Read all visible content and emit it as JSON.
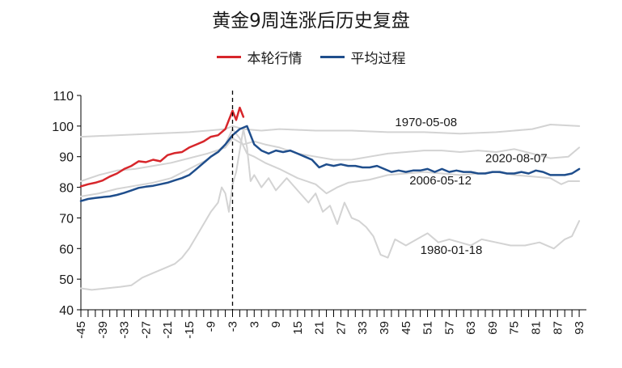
{
  "chart_data": {
    "type": "line",
    "title": "黄金9周连涨后历史复盘",
    "xlabel": "",
    "ylabel": "",
    "xlim": [
      -45,
      95
    ],
    "ylim": [
      40,
      110
    ],
    "x_ticks": [
      -45,
      -39,
      -33,
      -27,
      -21,
      -15,
      -9,
      -3,
      3,
      9,
      15,
      21,
      27,
      33,
      39,
      45,
      51,
      57,
      63,
      69,
      75,
      81,
      87,
      93
    ],
    "x_tick_labels": [
      "-45",
      "-39",
      "-33",
      "-27",
      "-21",
      "-15",
      "-9",
      "-3",
      "3",
      "9",
      "15",
      "21",
      "27",
      "33",
      "39",
      "45",
      "51",
      "57",
      "63",
      "69",
      "75",
      "81",
      "87",
      "93"
    ],
    "y_ticks": [
      40,
      50,
      60,
      70,
      80,
      90,
      100,
      110
    ],
    "y_tick_labels": [
      "40",
      "50",
      "60",
      "70",
      "80",
      "90",
      "100",
      "110"
    ],
    "reference_line": {
      "x": -3,
      "style": "dashed"
    },
    "legend": [
      {
        "name": "本轮行情",
        "color": "#d7262b"
      },
      {
        "name": "平均过程",
        "color": "#1f4e8c"
      }
    ],
    "colors": {
      "current": "#d7262b",
      "average": "#1f4e8c",
      "history": "#d3d3d3",
      "axis": "#000000"
    },
    "annotations": [
      {
        "text": "1970-05-08",
        "x": 42,
        "y": 101.5
      },
      {
        "text": "2020-08-07",
        "x": 67,
        "y": 89.8
      },
      {
        "text": "2006-05-12",
        "x": 46,
        "y": 82.5
      },
      {
        "text": "1980-01-18",
        "x": 49,
        "y": 59.8
      }
    ],
    "series": [
      {
        "name": "本轮行情",
        "role": "current",
        "points": [
          [
            -45,
            80.3
          ],
          [
            -43,
            81
          ],
          [
            -41,
            81.5
          ],
          [
            -39,
            82.2
          ],
          [
            -37,
            83.5
          ],
          [
            -35,
            84.5
          ],
          [
            -33,
            86
          ],
          [
            -31,
            87
          ],
          [
            -29,
            88.5
          ],
          [
            -27,
            88.2
          ],
          [
            -25,
            89
          ],
          [
            -23,
            88.5
          ],
          [
            -21,
            90.5
          ],
          [
            -19,
            91.2
          ],
          [
            -17,
            91.5
          ],
          [
            -15,
            93
          ],
          [
            -13,
            94
          ],
          [
            -11,
            95
          ],
          [
            -9,
            96.5
          ],
          [
            -7,
            97
          ],
          [
            -5,
            99
          ],
          [
            -4,
            102
          ],
          [
            -3,
            105
          ],
          [
            -2,
            102
          ],
          [
            -1,
            106
          ],
          [
            0,
            103
          ]
        ]
      },
      {
        "name": "平均过程",
        "role": "average",
        "points": [
          [
            -45,
            75.5
          ],
          [
            -43,
            76.2
          ],
          [
            -41,
            76.5
          ],
          [
            -39,
            76.8
          ],
          [
            -37,
            77
          ],
          [
            -35,
            77.5
          ],
          [
            -33,
            78.2
          ],
          [
            -31,
            79
          ],
          [
            -29,
            79.8
          ],
          [
            -27,
            80.2
          ],
          [
            -25,
            80.5
          ],
          [
            -23,
            81
          ],
          [
            -21,
            81.5
          ],
          [
            -19,
            82.3
          ],
          [
            -17,
            83
          ],
          [
            -15,
            84
          ],
          [
            -13,
            86
          ],
          [
            -11,
            88
          ],
          [
            -9,
            90
          ],
          [
            -7,
            91.5
          ],
          [
            -5,
            94
          ],
          [
            -3,
            97
          ],
          [
            -1,
            99
          ],
          [
            1,
            100
          ],
          [
            3,
            94
          ],
          [
            5,
            92
          ],
          [
            7,
            91
          ],
          [
            9,
            92
          ],
          [
            11,
            91.5
          ],
          [
            13,
            92
          ],
          [
            15,
            91
          ],
          [
            17,
            90
          ],
          [
            19,
            89
          ],
          [
            21,
            86.5
          ],
          [
            23,
            87.5
          ],
          [
            25,
            87
          ],
          [
            27,
            87.5
          ],
          [
            29,
            87
          ],
          [
            31,
            87
          ],
          [
            33,
            86.5
          ],
          [
            35,
            86.5
          ],
          [
            37,
            87
          ],
          [
            39,
            86
          ],
          [
            41,
            85
          ],
          [
            43,
            85.5
          ],
          [
            45,
            85
          ],
          [
            47,
            85.5
          ],
          [
            49,
            85.5
          ],
          [
            51,
            86
          ],
          [
            53,
            85
          ],
          [
            55,
            86
          ],
          [
            57,
            85
          ],
          [
            59,
            85.5
          ],
          [
            61,
            85
          ],
          [
            63,
            85
          ],
          [
            65,
            84.5
          ],
          [
            67,
            84.5
          ],
          [
            69,
            85
          ],
          [
            71,
            85
          ],
          [
            73,
            84.5
          ],
          [
            75,
            84.5
          ],
          [
            77,
            85
          ],
          [
            79,
            84.5
          ],
          [
            81,
            85.5
          ],
          [
            83,
            85
          ],
          [
            85,
            84
          ],
          [
            87,
            84
          ],
          [
            89,
            84
          ],
          [
            91,
            84.5
          ],
          [
            93,
            86
          ]
        ]
      },
      {
        "name": "1970-05-08",
        "role": "history",
        "points": [
          [
            -45,
            96.5
          ],
          [
            -35,
            97
          ],
          [
            -25,
            97.5
          ],
          [
            -15,
            98
          ],
          [
            -5,
            99
          ],
          [
            -3,
            100
          ],
          [
            0,
            99
          ],
          [
            5,
            98.5
          ],
          [
            10,
            99
          ],
          [
            20,
            98.5
          ],
          [
            30,
            98.5
          ],
          [
            40,
            98
          ],
          [
            50,
            98
          ],
          [
            60,
            97.5
          ],
          [
            70,
            98
          ],
          [
            80,
            99
          ],
          [
            85,
            100.5
          ],
          [
            93,
            100
          ]
        ]
      },
      {
        "name": "2020-08-07",
        "role": "history",
        "points": [
          [
            -45,
            82
          ],
          [
            -40,
            84
          ],
          [
            -35,
            85.5
          ],
          [
            -30,
            86
          ],
          [
            -25,
            87
          ],
          [
            -20,
            88
          ],
          [
            -15,
            89.5
          ],
          [
            -10,
            91
          ],
          [
            -5,
            93
          ],
          [
            -3,
            96
          ],
          [
            0,
            94
          ],
          [
            3,
            95
          ],
          [
            6,
            94
          ],
          [
            10,
            93
          ],
          [
            15,
            91
          ],
          [
            20,
            90
          ],
          [
            25,
            89
          ],
          [
            30,
            89
          ],
          [
            35,
            90
          ],
          [
            40,
            91
          ],
          [
            45,
            91.5
          ],
          [
            50,
            92
          ],
          [
            55,
            92
          ],
          [
            60,
            91.5
          ],
          [
            65,
            92
          ],
          [
            70,
            91.5
          ],
          [
            75,
            92.5
          ],
          [
            80,
            91
          ],
          [
            85,
            89.5
          ],
          [
            90,
            90
          ],
          [
            93,
            93
          ]
        ]
      },
      {
        "name": "2006-05-12",
        "role": "history",
        "points": [
          [
            -45,
            77
          ],
          [
            -40,
            78
          ],
          [
            -35,
            79.5
          ],
          [
            -30,
            80.5
          ],
          [
            -25,
            81.5
          ],
          [
            -20,
            83
          ],
          [
            -15,
            86
          ],
          [
            -10,
            89
          ],
          [
            -5,
            94
          ],
          [
            -3,
            99
          ],
          [
            -1,
            96
          ],
          [
            1,
            91
          ],
          [
            3,
            90
          ],
          [
            6,
            88
          ],
          [
            10,
            86
          ],
          [
            15,
            83
          ],
          [
            20,
            81
          ],
          [
            23,
            78
          ],
          [
            26,
            80
          ],
          [
            29,
            81.5
          ],
          [
            32,
            82
          ],
          [
            35,
            82.5
          ],
          [
            40,
            84
          ],
          [
            45,
            84.5
          ],
          [
            50,
            85
          ],
          [
            55,
            84.5
          ],
          [
            60,
            84
          ],
          [
            65,
            84.5
          ],
          [
            70,
            85
          ],
          [
            75,
            84
          ],
          [
            80,
            83.5
          ],
          [
            85,
            83
          ],
          [
            88,
            81
          ],
          [
            90,
            82
          ],
          [
            93,
            82
          ]
        ]
      },
      {
        "name": "1980-01-18",
        "role": "history",
        "points": [
          [
            -45,
            47
          ],
          [
            -42,
            46.5
          ],
          [
            -38,
            47
          ],
          [
            -34,
            47.5
          ],
          [
            -31,
            48
          ],
          [
            -28,
            50.5
          ],
          [
            -25,
            52
          ],
          [
            -22,
            53.5
          ],
          [
            -19,
            55
          ],
          [
            -17,
            57
          ],
          [
            -15,
            60
          ],
          [
            -13,
            64
          ],
          [
            -11,
            68
          ],
          [
            -9,
            72
          ],
          [
            -7,
            75
          ],
          [
            -6,
            80
          ],
          [
            -5,
            78
          ],
          [
            -4,
            72
          ],
          [
            -3,
            81
          ],
          [
            -2,
            85
          ],
          [
            -1,
            92
          ],
          [
            0,
            99
          ],
          [
            1,
            93
          ],
          [
            2,
            82
          ],
          [
            3,
            84
          ],
          [
            4,
            82
          ],
          [
            5,
            80
          ],
          [
            7,
            83
          ],
          [
            9,
            79
          ],
          [
            12,
            83
          ],
          [
            15,
            79
          ],
          [
            18,
            75
          ],
          [
            20,
            78
          ],
          [
            22,
            72
          ],
          [
            24,
            74
          ],
          [
            26,
            68
          ],
          [
            28,
            75
          ],
          [
            30,
            70
          ],
          [
            32,
            69
          ],
          [
            34,
            67
          ],
          [
            36,
            64
          ],
          [
            38,
            58
          ],
          [
            40,
            57
          ],
          [
            42,
            63
          ],
          [
            45,
            61
          ],
          [
            48,
            63
          ],
          [
            51,
            65
          ],
          [
            54,
            62
          ],
          [
            57,
            63
          ],
          [
            60,
            62
          ],
          [
            63,
            61
          ],
          [
            66,
            63
          ],
          [
            70,
            62
          ],
          [
            74,
            61
          ],
          [
            78,
            61
          ],
          [
            82,
            62
          ],
          [
            86,
            60
          ],
          [
            89,
            63
          ],
          [
            91,
            64
          ],
          [
            93,
            69
          ]
        ]
      }
    ]
  }
}
